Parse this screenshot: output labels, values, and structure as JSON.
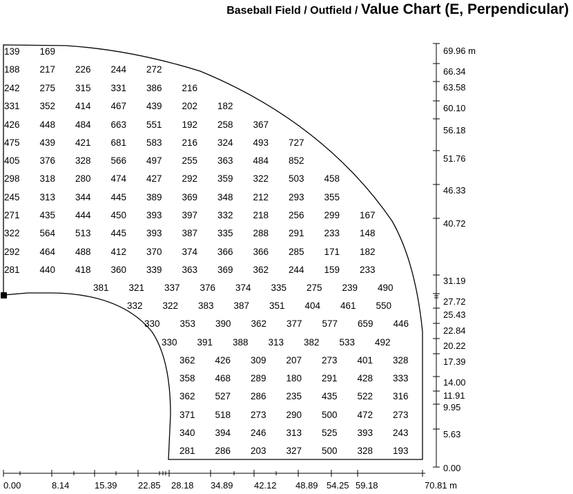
{
  "title": {
    "part1": "Baseball Field /",
    "part2": "Outfield /",
    "part3": "Value Chart (E, Perpendicular)"
  },
  "chart_data": {
    "type": "table",
    "description_units": "m",
    "x_ticks": [
      "0.00",
      "8.14",
      "15.39",
      "22.85",
      "28.18",
      "34.89",
      "42.12",
      "48.89",
      "54.25",
      "59.18",
      "70.81 m"
    ],
    "y_ticks": [
      "69.96 m",
      "66.34",
      "63.58",
      "60.10",
      "56.18",
      "51.76",
      "46.33",
      "40.72",
      "31.19",
      "27.72",
      "25.43",
      "22.84",
      "20.22",
      "17.39",
      "14.00",
      "11.91",
      "9.95",
      "5.63",
      "0.00"
    ],
    "rows": [
      {
        "values": [
          "139",
          "169"
        ]
      },
      {
        "values": [
          "188",
          "217",
          "226",
          "244",
          "272"
        ]
      },
      {
        "values": [
          "242",
          "275",
          "315",
          "331",
          "386",
          "216"
        ]
      },
      {
        "values": [
          "331",
          "352",
          "414",
          "467",
          "439",
          "202",
          "182"
        ]
      },
      {
        "values": [
          "426",
          "448",
          "484",
          "663",
          "551",
          "192",
          "258",
          "367"
        ]
      },
      {
        "values": [
          "475",
          "439",
          "421",
          "681",
          "583",
          "216",
          "324",
          "493",
          "727"
        ]
      },
      {
        "values": [
          "405",
          "376",
          "328",
          "566",
          "497",
          "255",
          "363",
          "484",
          "852"
        ]
      },
      {
        "values": [
          "298",
          "318",
          "280",
          "474",
          "427",
          "292",
          "359",
          "322",
          "503",
          "458"
        ]
      },
      {
        "values": [
          "245",
          "313",
          "344",
          "445",
          "389",
          "369",
          "348",
          "212",
          "293",
          "355"
        ]
      },
      {
        "values": [
          "271",
          "435",
          "444",
          "450",
          "393",
          "397",
          "332",
          "218",
          "256",
          "299",
          "167"
        ]
      },
      {
        "values": [
          "322",
          "564",
          "513",
          "445",
          "393",
          "387",
          "335",
          "288",
          "291",
          "233",
          "148"
        ]
      },
      {
        "values": [
          "292",
          "464",
          "488",
          "412",
          "370",
          "374",
          "366",
          "366",
          "285",
          "171",
          "182"
        ]
      },
      {
        "values": [
          "281",
          "440",
          "418",
          "360",
          "339",
          "363",
          "369",
          "362",
          "244",
          "159",
          "233"
        ]
      },
      {
        "values": [
          "381",
          "321",
          "337",
          "376",
          "374",
          "335",
          "275",
          "239",
          "490"
        ]
      },
      {
        "values": [
          "332",
          "322",
          "383",
          "387",
          "351",
          "404",
          "461",
          "550"
        ]
      },
      {
        "values": [
          "330",
          "353",
          "390",
          "362",
          "377",
          "577",
          "659",
          "446"
        ]
      },
      {
        "values": [
          "330",
          "391",
          "388",
          "313",
          "382",
          "533",
          "492"
        ]
      },
      {
        "values": [
          "362",
          "426",
          "309",
          "207",
          "273",
          "401",
          "328"
        ]
      },
      {
        "values": [
          "358",
          "468",
          "289",
          "180",
          "291",
          "428",
          "333"
        ]
      },
      {
        "values": [
          "362",
          "527",
          "286",
          "235",
          "435",
          "522",
          "316"
        ]
      },
      {
        "values": [
          "371",
          "518",
          "273",
          "290",
          "500",
          "472",
          "273"
        ]
      },
      {
        "values": [
          "340",
          "394",
          "246",
          "313",
          "525",
          "393",
          "243"
        ]
      },
      {
        "values": [
          "281",
          "286",
          "203",
          "327",
          "500",
          "328",
          "193"
        ]
      }
    ]
  }
}
